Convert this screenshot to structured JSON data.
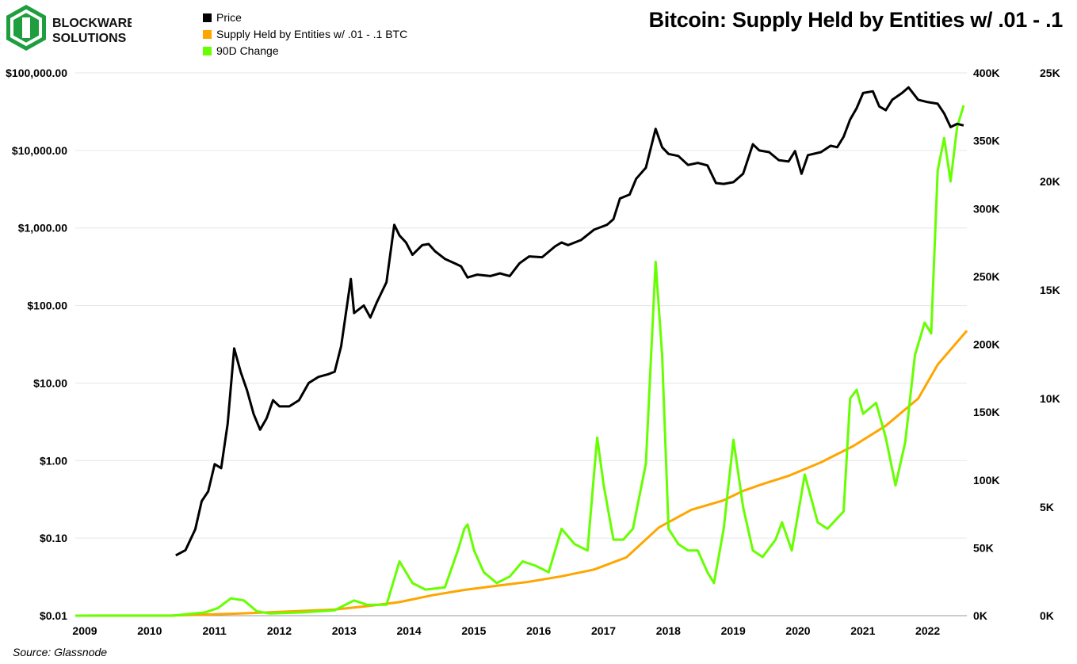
{
  "brand": {
    "line1": "BLOCKWARE",
    "line2": "SOLUTIONS",
    "colors": {
      "green": "#1f9e3f",
      "dark": "#111111"
    }
  },
  "title": "Bitcoin: Supply Held by Entities w/ .01 - .1",
  "source": "Source: Glassnode",
  "legend": [
    {
      "label": "Price",
      "color": "#000000"
    },
    {
      "label": "Supply Held by Entities w/ .01 - .1 BTC",
      "color": "#ffa500"
    },
    {
      "label": "90D Change",
      "color": "#66ff00"
    }
  ],
  "chart_data": {
    "type": "line",
    "title": "Bitcoin: Supply Held by Entities w/ .01 - .1",
    "x_axis": {
      "ticks": [
        "2009",
        "2010",
        "2011",
        "2012",
        "2013",
        "2014",
        "2015",
        "2016",
        "2017",
        "2018",
        "2019",
        "2020",
        "2021",
        "2022"
      ],
      "range": [
        2009.0,
        2022.75
      ]
    },
    "y_left": {
      "scale": "log",
      "range": [
        0.01,
        100000
      ],
      "tick_values": [
        0.01,
        0.1,
        1,
        10,
        100,
        1000,
        10000,
        100000
      ],
      "tick_labels": [
        "$0.01",
        "$0.10",
        "$1.00",
        "$10.00",
        "$100.00",
        "$1,000.00",
        "$10,000.00",
        "$100,000.00"
      ]
    },
    "y_right_inner": {
      "scale": "linear",
      "range": [
        0,
        400000
      ],
      "tick_values": [
        0,
        50000,
        100000,
        150000,
        200000,
        250000,
        300000,
        350000,
        400000
      ],
      "tick_labels": [
        "0K",
        "50K",
        "100K",
        "150K",
        "200K",
        "250K",
        "300K",
        "350K",
        "400K"
      ]
    },
    "y_right_outer": {
      "scale": "linear",
      "range": [
        0,
        25000
      ],
      "tick_values": [
        0,
        5000,
        10000,
        15000,
        20000,
        25000
      ],
      "tick_labels": [
        "0K",
        "5K",
        "10K",
        "15K",
        "20K",
        "25K"
      ]
    },
    "grid": "horizontal",
    "series": [
      {
        "name": "Price",
        "axis": "left",
        "color": "#000000",
        "points": [
          [
            2010.55,
            0.06
          ],
          [
            2010.7,
            0.07
          ],
          [
            2010.85,
            0.13
          ],
          [
            2010.95,
            0.3
          ],
          [
            2011.05,
            0.4
          ],
          [
            2011.15,
            0.9
          ],
          [
            2011.25,
            0.8
          ],
          [
            2011.35,
            3
          ],
          [
            2011.45,
            28
          ],
          [
            2011.55,
            14
          ],
          [
            2011.65,
            8
          ],
          [
            2011.75,
            4
          ],
          [
            2011.85,
            2.5
          ],
          [
            2011.95,
            3.5
          ],
          [
            2012.05,
            6
          ],
          [
            2012.15,
            5
          ],
          [
            2012.3,
            5
          ],
          [
            2012.45,
            6
          ],
          [
            2012.6,
            10
          ],
          [
            2012.75,
            12
          ],
          [
            2012.9,
            13
          ],
          [
            2013.0,
            14
          ],
          [
            2013.1,
            30
          ],
          [
            2013.25,
            220
          ],
          [
            2013.3,
            80
          ],
          [
            2013.45,
            100
          ],
          [
            2013.55,
            70
          ],
          [
            2013.65,
            110
          ],
          [
            2013.8,
            200
          ],
          [
            2013.92,
            1100
          ],
          [
            2014.0,
            800
          ],
          [
            2014.1,
            650
          ],
          [
            2014.2,
            450
          ],
          [
            2014.35,
            600
          ],
          [
            2014.45,
            620
          ],
          [
            2014.55,
            500
          ],
          [
            2014.7,
            400
          ],
          [
            2014.85,
            350
          ],
          [
            2014.95,
            320
          ],
          [
            2015.05,
            230
          ],
          [
            2015.2,
            250
          ],
          [
            2015.4,
            240
          ],
          [
            2015.55,
            260
          ],
          [
            2015.7,
            240
          ],
          [
            2015.85,
            350
          ],
          [
            2016.0,
            430
          ],
          [
            2016.2,
            420
          ],
          [
            2016.4,
            580
          ],
          [
            2016.5,
            650
          ],
          [
            2016.6,
            600
          ],
          [
            2016.8,
            700
          ],
          [
            2017.0,
            950
          ],
          [
            2017.2,
            1100
          ],
          [
            2017.3,
            1300
          ],
          [
            2017.4,
            2400
          ],
          [
            2017.55,
            2700
          ],
          [
            2017.65,
            4300
          ],
          [
            2017.8,
            6000
          ],
          [
            2017.95,
            19000
          ],
          [
            2018.05,
            11000
          ],
          [
            2018.15,
            9000
          ],
          [
            2018.3,
            8500
          ],
          [
            2018.45,
            6500
          ],
          [
            2018.6,
            6900
          ],
          [
            2018.75,
            6400
          ],
          [
            2018.88,
            3800
          ],
          [
            2019.0,
            3700
          ],
          [
            2019.15,
            3900
          ],
          [
            2019.3,
            5000
          ],
          [
            2019.45,
            12000
          ],
          [
            2019.55,
            10000
          ],
          [
            2019.7,
            9500
          ],
          [
            2019.85,
            7500
          ],
          [
            2020.0,
            7200
          ],
          [
            2020.1,
            9800
          ],
          [
            2020.2,
            5000
          ],
          [
            2020.3,
            8700
          ],
          [
            2020.5,
            9500
          ],
          [
            2020.65,
            11500
          ],
          [
            2020.75,
            11000
          ],
          [
            2020.85,
            15000
          ],
          [
            2020.95,
            25000
          ],
          [
            2021.05,
            35000
          ],
          [
            2021.15,
            55000
          ],
          [
            2021.3,
            58000
          ],
          [
            2021.4,
            37000
          ],
          [
            2021.5,
            33000
          ],
          [
            2021.6,
            45000
          ],
          [
            2021.75,
            55000
          ],
          [
            2021.85,
            65000
          ],
          [
            2022.0,
            45000
          ],
          [
            2022.15,
            42000
          ],
          [
            2022.3,
            40000
          ],
          [
            2022.4,
            30000
          ],
          [
            2022.5,
            20000
          ],
          [
            2022.6,
            22000
          ],
          [
            2022.7,
            21000
          ]
        ]
      },
      {
        "name": "Supply Held by Entities w/ .01 - .1 BTC",
        "axis": "right_inner",
        "color": "#ffa500",
        "points": [
          [
            2009.0,
            0
          ],
          [
            2010.5,
            200
          ],
          [
            2011.0,
            800
          ],
          [
            2011.5,
            1500
          ],
          [
            2012.0,
            2500
          ],
          [
            2012.5,
            3500
          ],
          [
            2013.0,
            4500
          ],
          [
            2013.5,
            7000
          ],
          [
            2014.0,
            10000
          ],
          [
            2014.5,
            15000
          ],
          [
            2015.0,
            19000
          ],
          [
            2015.5,
            22000
          ],
          [
            2016.0,
            25000
          ],
          [
            2016.5,
            29000
          ],
          [
            2017.0,
            34000
          ],
          [
            2017.5,
            43000
          ],
          [
            2018.0,
            65000
          ],
          [
            2018.5,
            78000
          ],
          [
            2019.0,
            85000
          ],
          [
            2019.3,
            92000
          ],
          [
            2019.6,
            97000
          ],
          [
            2020.0,
            103000
          ],
          [
            2020.5,
            113000
          ],
          [
            2021.0,
            125000
          ],
          [
            2021.5,
            140000
          ],
          [
            2022.0,
            160000
          ],
          [
            2022.3,
            185000
          ],
          [
            2022.75,
            210000
          ]
        ]
      },
      {
        "name": "90D Change",
        "axis": "right_outer",
        "color": "#66ff00",
        "points": [
          [
            2009.0,
            0
          ],
          [
            2010.5,
            0
          ],
          [
            2011.0,
            150
          ],
          [
            2011.2,
            350
          ],
          [
            2011.4,
            800
          ],
          [
            2011.6,
            700
          ],
          [
            2011.8,
            200
          ],
          [
            2012.0,
            100
          ],
          [
            2012.5,
            150
          ],
          [
            2013.0,
            250
          ],
          [
            2013.3,
            700
          ],
          [
            2013.5,
            500
          ],
          [
            2013.8,
            500
          ],
          [
            2014.0,
            2500
          ],
          [
            2014.2,
            1500
          ],
          [
            2014.4,
            1200
          ],
          [
            2014.7,
            1300
          ],
          [
            2014.9,
            3000
          ],
          [
            2015.0,
            4000
          ],
          [
            2015.05,
            4200
          ],
          [
            2015.15,
            3000
          ],
          [
            2015.3,
            2000
          ],
          [
            2015.5,
            1500
          ],
          [
            2015.7,
            1800
          ],
          [
            2015.9,
            2500
          ],
          [
            2016.1,
            2300
          ],
          [
            2016.3,
            2000
          ],
          [
            2016.5,
            4000
          ],
          [
            2016.7,
            3300
          ],
          [
            2016.9,
            3000
          ],
          [
            2017.0,
            6500
          ],
          [
            2017.05,
            8200
          ],
          [
            2017.15,
            6000
          ],
          [
            2017.3,
            3500
          ],
          [
            2017.45,
            3500
          ],
          [
            2017.6,
            4000
          ],
          [
            2017.8,
            7000
          ],
          [
            2017.95,
            16300
          ],
          [
            2018.05,
            12000
          ],
          [
            2018.15,
            4000
          ],
          [
            2018.3,
            3300
          ],
          [
            2018.45,
            3000
          ],
          [
            2018.6,
            3000
          ],
          [
            2018.75,
            2000
          ],
          [
            2018.85,
            1500
          ],
          [
            2019.0,
            4000
          ],
          [
            2019.15,
            8100
          ],
          [
            2019.3,
            5000
          ],
          [
            2019.45,
            3000
          ],
          [
            2019.6,
            2700
          ],
          [
            2019.8,
            3500
          ],
          [
            2019.9,
            4300
          ],
          [
            2020.05,
            3000
          ],
          [
            2020.25,
            6500
          ],
          [
            2020.45,
            4300
          ],
          [
            2020.6,
            4000
          ],
          [
            2020.85,
            4800
          ],
          [
            2020.95,
            10000
          ],
          [
            2021.05,
            10400
          ],
          [
            2021.15,
            9300
          ],
          [
            2021.35,
            9800
          ],
          [
            2021.5,
            8200
          ],
          [
            2021.65,
            6000
          ],
          [
            2021.8,
            8000
          ],
          [
            2021.95,
            12000
          ],
          [
            2022.1,
            13500
          ],
          [
            2022.2,
            13000
          ],
          [
            2022.3,
            20500
          ],
          [
            2022.4,
            22000
          ],
          [
            2022.5,
            20000
          ],
          [
            2022.6,
            22500
          ],
          [
            2022.7,
            23500
          ]
        ]
      }
    ]
  }
}
